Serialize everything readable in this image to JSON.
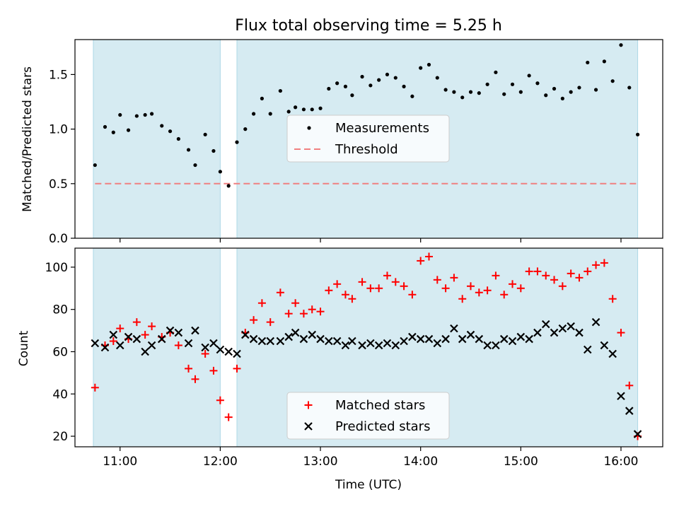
{
  "title": "Flux total observing time = 5.25 h",
  "colors": {
    "band": "#add8e6",
    "measurement": "#000000",
    "threshold": "#f08080",
    "matched": "#ff0000",
    "predicted": "#000000"
  },
  "chart_data": [
    {
      "type": "scatter",
      "panel": "top",
      "ylabel": "Matched/Predicted stars",
      "xlabel": "",
      "ylim": [
        0,
        1.82
      ],
      "xlim": [
        "10:33",
        "16:25"
      ],
      "yticks": [
        "0.0",
        "0.5",
        "1.0",
        "1.5"
      ],
      "legend_placement": "center",
      "shaded_intervals": [
        [
          "10:44",
          "12:00"
        ],
        [
          "12:10",
          "16:10"
        ]
      ],
      "threshold": 0.5,
      "series": [
        {
          "name": "Measurements",
          "points": [
            [
              "10:45",
              0.67
            ],
            [
              "10:51",
              1.02
            ],
            [
              "10:56",
              0.97
            ],
            [
              "11:00",
              1.13
            ],
            [
              "11:05",
              0.99
            ],
            [
              "11:10",
              1.12
            ],
            [
              "11:15",
              1.13
            ],
            [
              "11:19",
              1.14
            ],
            [
              "11:25",
              1.03
            ],
            [
              "11:30",
              0.98
            ],
            [
              "11:35",
              0.91
            ],
            [
              "11:41",
              0.81
            ],
            [
              "11:45",
              0.67
            ],
            [
              "11:51",
              0.95
            ],
            [
              "11:56",
              0.8
            ],
            [
              "12:00",
              0.61
            ],
            [
              "12:05",
              0.48
            ],
            [
              "12:10",
              0.88
            ],
            [
              "12:15",
              1.0
            ],
            [
              "12:20",
              1.14
            ],
            [
              "12:25",
              1.28
            ],
            [
              "12:30",
              1.14
            ],
            [
              "12:36",
              1.35
            ],
            [
              "12:41",
              1.16
            ],
            [
              "12:45",
              1.2
            ],
            [
              "12:50",
              1.18
            ],
            [
              "12:55",
              1.18
            ],
            [
              "13:00",
              1.19
            ],
            [
              "13:05",
              1.37
            ],
            [
              "13:10",
              1.42
            ],
            [
              "13:15",
              1.39
            ],
            [
              "13:19",
              1.31
            ],
            [
              "13:25",
              1.48
            ],
            [
              "13:30",
              1.4
            ],
            [
              "13:35",
              1.45
            ],
            [
              "13:40",
              1.5
            ],
            [
              "13:45",
              1.47
            ],
            [
              "13:50",
              1.39
            ],
            [
              "13:55",
              1.3
            ],
            [
              "14:00",
              1.56
            ],
            [
              "14:05",
              1.59
            ],
            [
              "14:10",
              1.47
            ],
            [
              "14:15",
              1.36
            ],
            [
              "14:20",
              1.34
            ],
            [
              "14:25",
              1.29
            ],
            [
              "14:30",
              1.34
            ],
            [
              "14:35",
              1.33
            ],
            [
              "14:40",
              1.41
            ],
            [
              "14:45",
              1.52
            ],
            [
              "14:50",
              1.32
            ],
            [
              "14:55",
              1.41
            ],
            [
              "15:00",
              1.34
            ],
            [
              "15:05",
              1.49
            ],
            [
              "15:10",
              1.42
            ],
            [
              "15:15",
              1.31
            ],
            [
              "15:20",
              1.37
            ],
            [
              "15:25",
              1.28
            ],
            [
              "15:30",
              1.34
            ],
            [
              "15:35",
              1.38
            ],
            [
              "15:40",
              1.61
            ],
            [
              "15:45",
              1.36
            ],
            [
              "15:50",
              1.62
            ],
            [
              "15:55",
              1.44
            ],
            [
              "16:00",
              1.77
            ],
            [
              "16:05",
              1.38
            ],
            [
              "16:10",
              0.95
            ]
          ]
        },
        {
          "name": "Threshold",
          "value": 0.5
        }
      ]
    },
    {
      "type": "scatter",
      "panel": "bottom",
      "xlabel": "Time (UTC)",
      "ylabel": "Count",
      "ylim": [
        15,
        109
      ],
      "xlim": [
        "10:33",
        "16:25"
      ],
      "yticks": [
        "20",
        "40",
        "60",
        "80",
        "100"
      ],
      "xticks": [
        "11:00",
        "12:00",
        "13:00",
        "14:00",
        "15:00",
        "16:00"
      ],
      "legend_placement": "lower center",
      "shaded_intervals": [
        [
          "10:44",
          "12:00"
        ],
        [
          "12:10",
          "16:10"
        ]
      ],
      "series": [
        {
          "name": "Matched stars",
          "points": [
            [
              "10:45",
              43
            ],
            [
              "10:51",
              63
            ],
            [
              "10:56",
              65
            ],
            [
              "11:00",
              71
            ],
            [
              "11:05",
              66
            ],
            [
              "11:10",
              74
            ],
            [
              "11:15",
              68
            ],
            [
              "11:19",
              72
            ],
            [
              "11:25",
              67
            ],
            [
              "11:30",
              69
            ],
            [
              "11:35",
              63
            ],
            [
              "11:41",
              52
            ],
            [
              "11:45",
              47
            ],
            [
              "11:51",
              59
            ],
            [
              "11:56",
              51
            ],
            [
              "12:00",
              37
            ],
            [
              "12:05",
              29
            ],
            [
              "12:10",
              52
            ],
            [
              "12:15",
              69
            ],
            [
              "12:20",
              75
            ],
            [
              "12:25",
              83
            ],
            [
              "12:30",
              74
            ],
            [
              "12:36",
              88
            ],
            [
              "12:41",
              78
            ],
            [
              "12:45",
              83
            ],
            [
              "12:50",
              78
            ],
            [
              "12:55",
              80
            ],
            [
              "13:00",
              79
            ],
            [
              "13:05",
              89
            ],
            [
              "13:10",
              92
            ],
            [
              "13:15",
              87
            ],
            [
              "13:19",
              85
            ],
            [
              "13:25",
              93
            ],
            [
              "13:30",
              90
            ],
            [
              "13:35",
              90
            ],
            [
              "13:40",
              96
            ],
            [
              "13:45",
              93
            ],
            [
              "13:50",
              91
            ],
            [
              "13:55",
              87
            ],
            [
              "14:00",
              103
            ],
            [
              "14:05",
              105
            ],
            [
              "14:10",
              94
            ],
            [
              "14:15",
              90
            ],
            [
              "14:20",
              95
            ],
            [
              "14:25",
              85
            ],
            [
              "14:30",
              91
            ],
            [
              "14:35",
              88
            ],
            [
              "14:40",
              89
            ],
            [
              "14:45",
              96
            ],
            [
              "14:50",
              87
            ],
            [
              "14:55",
              92
            ],
            [
              "15:00",
              90
            ],
            [
              "15:05",
              98
            ],
            [
              "15:10",
              98
            ],
            [
              "15:15",
              96
            ],
            [
              "15:20",
              94
            ],
            [
              "15:25",
              91
            ],
            [
              "15:30",
              97
            ],
            [
              "15:35",
              95
            ],
            [
              "15:40",
              98
            ],
            [
              "15:45",
              101
            ],
            [
              "15:50",
              102
            ],
            [
              "15:55",
              85
            ],
            [
              "16:00",
              69
            ],
            [
              "16:05",
              44
            ],
            [
              "16:10",
              20
            ]
          ]
        },
        {
          "name": "Predicted stars",
          "points": [
            [
              "10:45",
              64
            ],
            [
              "10:51",
              62
            ],
            [
              "10:56",
              68
            ],
            [
              "11:00",
              63
            ],
            [
              "11:05",
              67
            ],
            [
              "11:10",
              66
            ],
            [
              "11:15",
              60
            ],
            [
              "11:19",
              63
            ],
            [
              "11:25",
              66
            ],
            [
              "11:30",
              70
            ],
            [
              "11:35",
              69
            ],
            [
              "11:41",
              64
            ],
            [
              "11:45",
              70
            ],
            [
              "11:51",
              62
            ],
            [
              "11:56",
              64
            ],
            [
              "12:00",
              61
            ],
            [
              "12:05",
              60
            ],
            [
              "12:10",
              59
            ],
            [
              "12:15",
              68
            ],
            [
              "12:20",
              66
            ],
            [
              "12:25",
              65
            ],
            [
              "12:30",
              65
            ],
            [
              "12:36",
              65
            ],
            [
              "12:41",
              67
            ],
            [
              "12:45",
              69
            ],
            [
              "12:50",
              66
            ],
            [
              "12:55",
              68
            ],
            [
              "13:00",
              66
            ],
            [
              "13:05",
              65
            ],
            [
              "13:10",
              65
            ],
            [
              "13:15",
              63
            ],
            [
              "13:19",
              65
            ],
            [
              "13:25",
              63
            ],
            [
              "13:30",
              64
            ],
            [
              "13:35",
              63
            ],
            [
              "13:40",
              64
            ],
            [
              "13:45",
              63
            ],
            [
              "13:50",
              65
            ],
            [
              "13:55",
              67
            ],
            [
              "14:00",
              66
            ],
            [
              "14:05",
              66
            ],
            [
              "14:10",
              64
            ],
            [
              "14:15",
              66
            ],
            [
              "14:20",
              71
            ],
            [
              "14:25",
              66
            ],
            [
              "14:30",
              68
            ],
            [
              "14:35",
              66
            ],
            [
              "14:40",
              63
            ],
            [
              "14:45",
              63
            ],
            [
              "14:50",
              66
            ],
            [
              "14:55",
              65
            ],
            [
              "15:00",
              67
            ],
            [
              "15:05",
              66
            ],
            [
              "15:10",
              69
            ],
            [
              "15:15",
              73
            ],
            [
              "15:20",
              69
            ],
            [
              "15:25",
              71
            ],
            [
              "15:30",
              72
            ],
            [
              "15:35",
              69
            ],
            [
              "15:40",
              61
            ],
            [
              "15:45",
              74
            ],
            [
              "15:50",
              63
            ],
            [
              "15:55",
              59
            ],
            [
              "16:00",
              39
            ],
            [
              "16:05",
              32
            ],
            [
              "16:10",
              21
            ]
          ]
        }
      ]
    }
  ]
}
